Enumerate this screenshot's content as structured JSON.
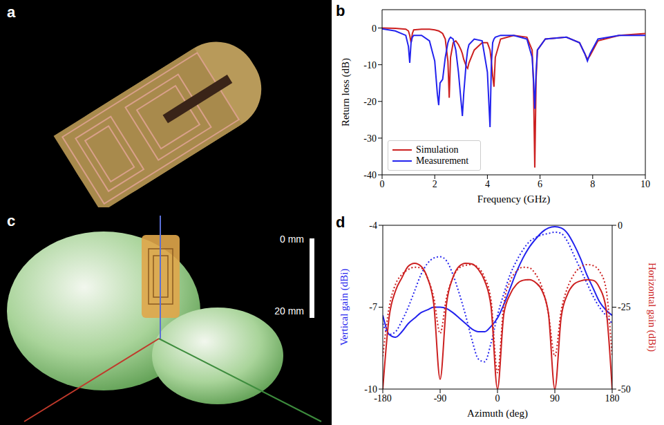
{
  "images": [
    {
      "panel": "a"
    },
    {
      "panel": "c",
      "scale_bar": {
        "top": "0 mm",
        "bottom": "20 mm"
      }
    }
  ],
  "chart_data": [
    {
      "panel": "b",
      "type": "line",
      "x_label": "Frequency (GHz)",
      "y_label": "Return loss (dB)",
      "xlim": [
        0,
        10
      ],
      "xticks": [
        0,
        2,
        4,
        6,
        8,
        10
      ],
      "ylim": [
        -40,
        5
      ],
      "yticks": [
        -40,
        -30,
        -20,
        -10,
        0
      ],
      "grid": false,
      "legend": "lower left",
      "x": [
        0,
        0.5,
        0.9,
        1.0,
        1.05,
        1.1,
        1.15,
        1.2,
        1.5,
        1.8,
        2.0,
        2.1,
        2.15,
        2.2,
        2.3,
        2.4,
        2.5,
        2.55,
        2.6,
        2.7,
        2.8,
        2.9,
        3.0,
        3.05,
        3.1,
        3.2,
        3.25,
        3.3,
        3.5,
        3.8,
        4.0,
        4.1,
        4.15,
        4.2,
        4.25,
        4.3,
        4.5,
        5.0,
        5.5,
        5.7,
        5.75,
        5.8,
        5.85,
        5.9,
        6.2,
        7.0,
        7.5,
        7.7,
        7.8,
        7.9,
        8.2,
        9.0,
        10.0
      ],
      "series": [
        {
          "name": "Simulation",
          "color": "#cc2020",
          "line_style": "solid",
          "values": [
            0,
            -0.1,
            -0.3,
            -0.8,
            -2,
            -4,
            -1.5,
            -0.5,
            -0.3,
            -0.3,
            -0.5,
            -0.7,
            -0.8,
            -1,
            -1.5,
            -3,
            -9,
            -19,
            -8,
            -4,
            -3.5,
            -4.5,
            -6,
            -7,
            -8.5,
            -10.5,
            -11,
            -9.5,
            -6,
            -4,
            -4,
            -6,
            -9,
            -13,
            -16,
            -8,
            -3,
            -2,
            -2.5,
            -6,
            -15,
            -38,
            -14,
            -6,
            -3,
            -2.5,
            -4,
            -7,
            -8.5,
            -7.5,
            -3.5,
            -2,
            -1.5
          ]
        },
        {
          "name": "Measurement",
          "color": "#2222ee",
          "line_style": "solid",
          "values": [
            -0.2,
            -0.8,
            -2,
            -5,
            -9.5,
            -4,
            -2.5,
            -2,
            -2,
            -3.5,
            -9,
            -18,
            -21,
            -15,
            -14,
            -8,
            -4,
            -3,
            -2.5,
            -3,
            -6,
            -12,
            -20,
            -24,
            -18,
            -9,
            -6,
            -4.5,
            -3,
            -3.5,
            -12,
            -27,
            -10,
            -4,
            -3,
            -2.5,
            -2,
            -2,
            -3,
            -8,
            -14,
            -22,
            -12,
            -6,
            -3,
            -2.5,
            -4,
            -7,
            -9,
            -7,
            -3,
            -2,
            -2
          ]
        }
      ]
    },
    {
      "panel": "d",
      "type": "line",
      "x_label": "Azimuth (deg)",
      "y_label": "Vertical gain (dBi)",
      "y2_label": "Horizontal gain (dBi)",
      "xlim": [
        -180,
        180
      ],
      "xticks": [
        -180,
        -90,
        0,
        90,
        180
      ],
      "ylim": [
        -10,
        -4
      ],
      "yticks": [
        -10,
        -7,
        -4
      ],
      "y2lim": [
        -50,
        0
      ],
      "y2ticks": [
        -50,
        -25,
        0
      ],
      "grid": false,
      "x": [
        -180,
        -170,
        -160,
        -150,
        -140,
        -130,
        -120,
        -110,
        -100,
        -90,
        -80,
        -70,
        -60,
        -50,
        -40,
        -30,
        -20,
        -10,
        0,
        10,
        20,
        30,
        40,
        50,
        60,
        70,
        80,
        90,
        100,
        110,
        120,
        130,
        140,
        150,
        160,
        170,
        180
      ],
      "series": [
        {
          "color": "#2222ee",
          "line_style": "solid",
          "axis": "y",
          "values": [
            -7.3,
            -8.0,
            -8.1,
            -7.9,
            -7.6,
            -7.4,
            -7.2,
            -7.1,
            -7.0,
            -7.0,
            -7.05,
            -7.2,
            -7.4,
            -7.6,
            -7.8,
            -7.9,
            -7.9,
            -7.7,
            -7.4,
            -6.9,
            -6.3,
            -5.7,
            -5.2,
            -4.8,
            -4.5,
            -4.25,
            -4.1,
            -4.05,
            -4.1,
            -4.3,
            -4.7,
            -5.2,
            -5.8,
            -6.3,
            -6.8,
            -7.1,
            -7.3
          ]
        },
        {
          "color": "#2222ee",
          "line_style": "dotted",
          "axis": "y",
          "values": [
            -7.6,
            -8.0,
            -7.9,
            -7.5,
            -7.0,
            -6.4,
            -5.8,
            -5.4,
            -5.2,
            -5.15,
            -5.3,
            -5.8,
            -6.5,
            -7.3,
            -8.2,
            -8.9,
            -9.0,
            -8.3,
            -7.3,
            -6.5,
            -5.8,
            -5.3,
            -4.9,
            -4.6,
            -4.45,
            -4.35,
            -4.3,
            -4.25,
            -4.3,
            -4.6,
            -5.1,
            -5.6,
            -6.1,
            -6.6,
            -7.0,
            -7.3,
            -7.6
          ]
        },
        {
          "color": "#cc2020",
          "line_style": "solid",
          "axis": "y2",
          "values": [
            -50,
            -28,
            -20,
            -16,
            -12.5,
            -11.6,
            -12.5,
            -16,
            -24,
            -47,
            -24,
            -16,
            -12.5,
            -11.6,
            -11.8,
            -13.5,
            -17,
            -25,
            -50,
            -27,
            -21,
            -18,
            -16.8,
            -16.6,
            -17.5,
            -20,
            -27,
            -50,
            -28,
            -21,
            -18,
            -17,
            -16.6,
            -16.8,
            -19,
            -25,
            -50
          ]
        },
        {
          "color": "#cc2020",
          "line_style": "dotted",
          "axis": "y2",
          "values": [
            -40,
            -25,
            -18,
            -15,
            -13.5,
            -12.8,
            -13,
            -16,
            -22,
            -33,
            -22,
            -16,
            -13,
            -12.2,
            -12,
            -13,
            -16,
            -23,
            -45,
            -24,
            -17,
            -14,
            -12.8,
            -13,
            -15,
            -19,
            -27,
            -40,
            -26,
            -19,
            -15,
            -12.8,
            -12,
            -12.3,
            -14,
            -19,
            -40
          ]
        }
      ]
    }
  ]
}
